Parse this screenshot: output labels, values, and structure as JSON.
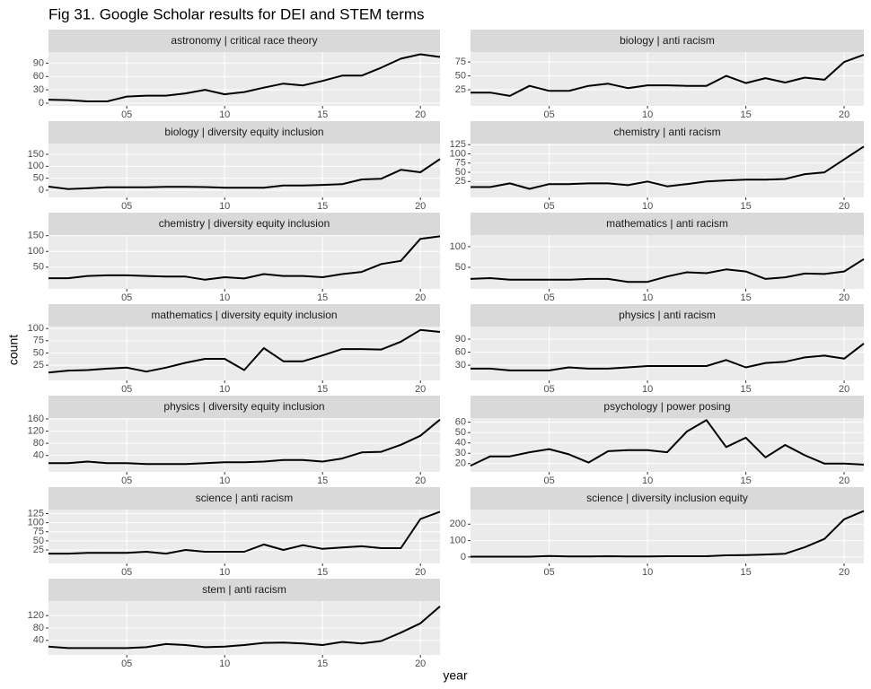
{
  "chart_data": {
    "type": "line",
    "title": "Fig 31. Google Scholar results for DEI and STEM terms",
    "x_label": "year",
    "y_label": "count",
    "color": "#000000",
    "grid": true,
    "x": [
      1,
      2,
      3,
      4,
      5,
      6,
      7,
      8,
      9,
      10,
      11,
      12,
      13,
      14,
      15,
      16,
      17,
      18,
      19,
      20,
      21
    ],
    "xlim": [
      1,
      21
    ],
    "xticks": [
      {
        "value": 5,
        "label": "05"
      },
      10,
      15,
      20
    ],
    "facets": [
      {
        "title": "astronomy | critical race theory",
        "ylim": [
          -6,
          115
        ],
        "yticks": [
          0,
          30,
          60,
          90
        ],
        "values": [
          8,
          7,
          4,
          4,
          15,
          17,
          17,
          22,
          30,
          20,
          25,
          35,
          44,
          40,
          50,
          62,
          62,
          80,
          100,
          110,
          104
        ]
      },
      {
        "title": "biology | anti racism",
        "ylim": [
          -4,
          93
        ],
        "yticks": [
          25,
          50,
          75
        ],
        "values": [
          20,
          20,
          14,
          32,
          23,
          23,
          32,
          36,
          28,
          33,
          33,
          32,
          32,
          50,
          37,
          46,
          38,
          47,
          43,
          75,
          88
        ]
      },
      {
        "title": "biology | diversity equity inclusion",
        "ylim": [
          -30,
          195
        ],
        "yticks": [
          0,
          50,
          100,
          150
        ],
        "values": [
          15,
          5,
          8,
          12,
          12,
          12,
          14,
          14,
          13,
          10,
          10,
          10,
          20,
          20,
          22,
          25,
          45,
          48,
          85,
          75,
          130
        ]
      },
      {
        "title": "chemistry | anti racism",
        "ylim": [
          -18,
          128
        ],
        "yticks": [
          25,
          50,
          75,
          100,
          125
        ],
        "values": [
          10,
          10,
          20,
          5,
          18,
          18,
          20,
          20,
          15,
          25,
          12,
          18,
          25,
          28,
          30,
          30,
          32,
          45,
          50,
          85,
          120
        ]
      },
      {
        "title": "chemistry | diversity equity inclusion",
        "ylim": [
          -19,
          152
        ],
        "yticks": [
          50,
          100,
          150
        ],
        "values": [
          15,
          15,
          22,
          24,
          24,
          22,
          20,
          20,
          10,
          18,
          14,
          28,
          22,
          22,
          18,
          28,
          35,
          60,
          70,
          140,
          148
        ]
      },
      {
        "title": "mathematics | anti racism",
        "ylim": [
          -2,
          128
        ],
        "yticks": [
          50,
          100
        ],
        "values": [
          22,
          24,
          20,
          20,
          20,
          20,
          22,
          22,
          15,
          15,
          28,
          38,
          36,
          45,
          40,
          22,
          26,
          35,
          34,
          40,
          70
        ]
      },
      {
        "title": "mathematics | diversity equity inclusion",
        "ylim": [
          -6,
          104
        ],
        "yticks": [
          25,
          50,
          75,
          100
        ],
        "values": [
          10,
          14,
          15,
          18,
          20,
          12,
          20,
          30,
          38,
          38,
          15,
          60,
          33,
          33,
          45,
          58,
          58,
          57,
          73,
          97,
          93
        ]
      },
      {
        "title": "physics | anti racism",
        "ylim": [
          -5,
          119
        ],
        "yticks": [
          30,
          60,
          90
        ],
        "values": [
          22,
          22,
          18,
          18,
          18,
          25,
          22,
          22,
          25,
          28,
          28,
          28,
          28,
          42,
          25,
          35,
          38,
          48,
          52,
          45,
          80
        ]
      },
      {
        "title": "physics | diversity equity inclusion",
        "ylim": [
          -14,
          163
        ],
        "yticks": [
          40,
          80,
          120,
          160
        ],
        "values": [
          15,
          15,
          20,
          15,
          15,
          12,
          12,
          12,
          15,
          18,
          18,
          20,
          25,
          25,
          20,
          30,
          50,
          52,
          75,
          105,
          158
        ]
      },
      {
        "title": "psychology | power posing",
        "ylim": [
          12,
          64
        ],
        "yticks": [
          20,
          30,
          40,
          50,
          60
        ],
        "values": [
          18,
          27,
          27,
          31,
          34,
          29,
          21,
          32,
          33,
          33,
          31,
          51,
          62,
          36,
          45,
          26,
          38,
          28,
          20,
          20,
          19
        ]
      },
      {
        "title": "science | anti racism",
        "ylim": [
          -12,
          136
        ],
        "yticks": [
          25,
          50,
          75,
          100,
          125
        ],
        "values": [
          15,
          15,
          17,
          17,
          17,
          20,
          15,
          25,
          20,
          20,
          20,
          40,
          25,
          38,
          28,
          32,
          35,
          30,
          30,
          110,
          130
        ]
      },
      {
        "title": "science | diversity inclusion equity",
        "ylim": [
          -39,
          289
        ],
        "yticks": [
          0,
          100,
          200
        ],
        "values": [
          2,
          2,
          2,
          2,
          6,
          3,
          3,
          5,
          3,
          3,
          5,
          5,
          5,
          10,
          12,
          15,
          20,
          60,
          110,
          230,
          280
        ]
      },
      {
        "title": "stem | anti racism",
        "ylim": [
          -7,
          167
        ],
        "yticks": [
          40,
          80,
          120
        ],
        "values": [
          20,
          15,
          15,
          15,
          15,
          18,
          28,
          25,
          18,
          20,
          25,
          32,
          33,
          30,
          25,
          35,
          30,
          38,
          65,
          95,
          150
        ]
      }
    ]
  }
}
